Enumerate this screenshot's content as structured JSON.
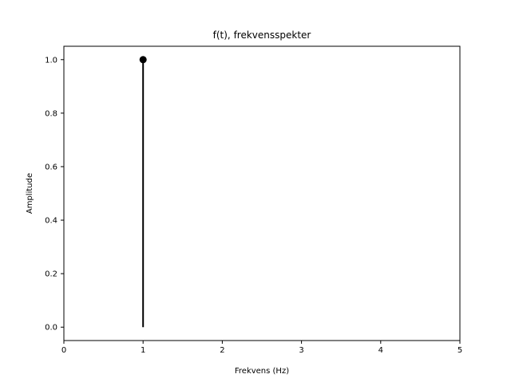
{
  "chart_data": {
    "type": "stem",
    "title": "f(t), frekvensspekter",
    "xlabel": "Frekvens (Hz)",
    "ylabel": "Amplitude",
    "xlim": [
      0,
      5
    ],
    "ylim": [
      -0.05,
      1.05
    ],
    "xticks": [
      0,
      1,
      2,
      3,
      4,
      5
    ],
    "xtick_labels": [
      "0",
      "1",
      "2",
      "3",
      "4",
      "5"
    ],
    "yticks": [
      0.0,
      0.2,
      0.4,
      0.6,
      0.8,
      1.0
    ],
    "ytick_labels": [
      "0.0",
      "0.2",
      "0.4",
      "0.6",
      "0.8",
      "1.0"
    ],
    "grid": false,
    "legend": "none",
    "series": [
      {
        "x": [
          1
        ],
        "y": [
          1.0
        ],
        "color": "#000000",
        "marker": "circle"
      }
    ]
  }
}
